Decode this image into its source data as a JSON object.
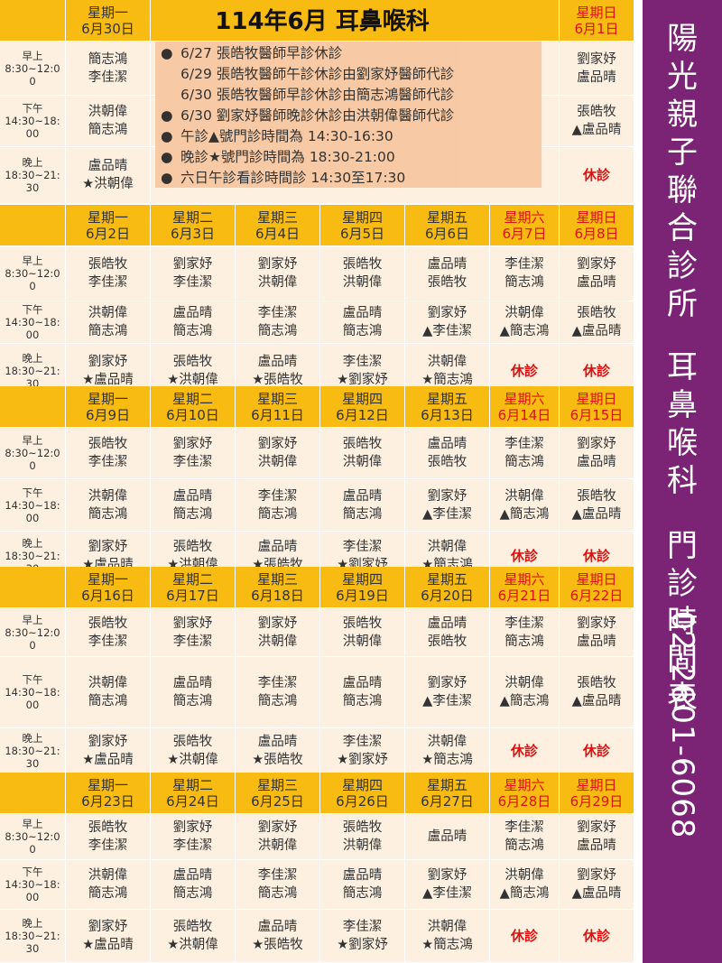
{
  "sidebar": {
    "clinic": "陽光親子聯合診所",
    "dept": "耳鼻喉科",
    "label": "門診時間表",
    "phone": "02-2601-6068"
  },
  "first_week": {
    "title": "114年6月 耳鼻喉科",
    "mon": {
      "day": "星期一",
      "date": "6月30日"
    },
    "sun": {
      "day": "星期日",
      "date": "6月1日"
    },
    "slots": [
      {
        "name": "早上",
        "time": "8:30~12:00"
      },
      {
        "name": "下午",
        "time": "14:30~18:00"
      },
      {
        "name": "晚上",
        "time": "18:30~21:30"
      }
    ],
    "mon_cells": [
      [
        "簡志鴻",
        "李佳潔"
      ],
      [
        "洪朝偉",
        "簡志鴻"
      ],
      [
        "盧品晴",
        "★洪朝偉"
      ]
    ],
    "sun_cells": [
      [
        "劉家妤",
        "盧品晴"
      ],
      [
        "張皓牧",
        "▲盧品晴"
      ],
      [
        "休診"
      ]
    ],
    "notice": [
      {
        "bullet": true,
        "text": "6/27  張皓牧醫師早診休診"
      },
      {
        "bullet": false,
        "text": "6/29  張皓牧醫師午診休診由劉家妤醫師代診"
      },
      {
        "bullet": false,
        "text": "6/30  張皓牧醫師早診休診由簡志鴻醫師代診"
      },
      {
        "bullet": true,
        "text": "6/30  劉家妤醫師晚診休診由洪朝偉醫師代診"
      },
      {
        "bullet": true,
        "text": "午診▲號門診時間為 14:30-16:30"
      },
      {
        "bullet": true,
        "text": "晚診★號門診時間為  18:30-21:00"
      },
      {
        "bullet": true,
        "text": "六日午診看診時間診 14:30至17:30"
      }
    ]
  },
  "weeks": [
    {
      "days": [
        {
          "day": "星期一",
          "date": "6月2日"
        },
        {
          "day": "星期二",
          "date": "6月3日"
        },
        {
          "day": "星期三",
          "date": "6月4日"
        },
        {
          "day": "星期四",
          "date": "6月5日"
        },
        {
          "day": "星期五",
          "date": "6月6日"
        },
        {
          "day": "星期六",
          "date": "6月7日"
        },
        {
          "day": "星期日",
          "date": "6月8日"
        }
      ],
      "rows": [
        [
          [
            "張皓牧",
            "李佳潔"
          ],
          [
            "劉家妤",
            "李佳潔"
          ],
          [
            "劉家妤",
            "洪朝偉"
          ],
          [
            "張皓牧",
            "洪朝偉"
          ],
          [
            "盧品晴",
            "張皓牧"
          ],
          [
            "李佳潔",
            "簡志鴻"
          ],
          [
            "劉家妤",
            "盧品晴"
          ]
        ],
        [
          [
            "洪朝偉",
            "簡志鴻"
          ],
          [
            "盧品晴",
            "簡志鴻"
          ],
          [
            "李佳潔",
            "簡志鴻"
          ],
          [
            "盧品晴",
            "簡志鴻"
          ],
          [
            "劉家妤",
            "▲李佳潔"
          ],
          [
            "洪朝偉",
            "▲簡志鴻"
          ],
          [
            "張皓牧",
            "▲盧品晴"
          ]
        ],
        [
          [
            "劉家妤",
            "★盧品晴"
          ],
          [
            "張皓牧",
            "★洪朝偉"
          ],
          [
            "盧品晴",
            "★張皓牧"
          ],
          [
            "李佳潔",
            "★劉家妤"
          ],
          [
            "洪朝偉",
            "★簡志鴻"
          ],
          [
            "休診"
          ],
          [
            "休診"
          ]
        ]
      ]
    },
    {
      "days": [
        {
          "day": "星期一",
          "date": "6月9日"
        },
        {
          "day": "星期二",
          "date": "6月10日"
        },
        {
          "day": "星期三",
          "date": "6月11日"
        },
        {
          "day": "星期四",
          "date": "6月12日"
        },
        {
          "day": "星期五",
          "date": "6月13日"
        },
        {
          "day": "星期六",
          "date": "6月14日"
        },
        {
          "day": "星期日",
          "date": "6月15日"
        }
      ],
      "rows": [
        [
          [
            "張皓牧",
            "李佳潔"
          ],
          [
            "劉家妤",
            "李佳潔"
          ],
          [
            "劉家妤",
            "洪朝偉"
          ],
          [
            "張皓牧",
            "洪朝偉"
          ],
          [
            "盧品晴",
            "張皓牧"
          ],
          [
            "李佳潔",
            "簡志鴻"
          ],
          [
            "劉家妤",
            "盧品晴"
          ]
        ],
        [
          [
            "洪朝偉",
            "簡志鴻"
          ],
          [
            "盧品晴",
            "簡志鴻"
          ],
          [
            "李佳潔",
            "簡志鴻"
          ],
          [
            "盧品晴",
            "簡志鴻"
          ],
          [
            "劉家妤",
            "▲李佳潔"
          ],
          [
            "洪朝偉",
            "▲簡志鴻"
          ],
          [
            "張皓牧",
            "▲盧品晴"
          ]
        ],
        [
          [
            "劉家妤",
            "★盧品晴"
          ],
          [
            "張皓牧",
            "★洪朝偉"
          ],
          [
            "盧品晴",
            "★張皓牧"
          ],
          [
            "李佳潔",
            "★劉家妤"
          ],
          [
            "洪朝偉",
            "★簡志鴻"
          ],
          [
            "休診"
          ],
          [
            "休診"
          ]
        ]
      ]
    },
    {
      "days": [
        {
          "day": "星期一",
          "date": "6月16日"
        },
        {
          "day": "星期二",
          "date": "6月17日"
        },
        {
          "day": "星期三",
          "date": "6月18日"
        },
        {
          "day": "星期四",
          "date": "6月19日"
        },
        {
          "day": "星期五",
          "date": "6月20日"
        },
        {
          "day": "星期六",
          "date": "6月21日"
        },
        {
          "day": "星期日",
          "date": "6月22日"
        }
      ],
      "rows": [
        [
          [
            "張皓牧",
            "李佳潔"
          ],
          [
            "劉家妤",
            "李佳潔"
          ],
          [
            "劉家妤",
            "洪朝偉"
          ],
          [
            "張皓牧",
            "洪朝偉"
          ],
          [
            "盧品晴",
            "張皓牧"
          ],
          [
            "李佳潔",
            "簡志鴻"
          ],
          [
            "劉家妤",
            "盧品晴"
          ]
        ],
        [
          [
            "洪朝偉",
            "簡志鴻"
          ],
          [
            "盧品晴",
            "簡志鴻"
          ],
          [
            "李佳潔",
            "簡志鴻"
          ],
          [
            "盧品晴",
            "簡志鴻"
          ],
          [
            "劉家妤",
            "▲李佳潔"
          ],
          [
            "洪朝偉",
            "▲簡志鴻"
          ],
          [
            "張皓牧",
            "▲盧品晴"
          ]
        ],
        [
          [
            "劉家妤",
            "★盧品晴"
          ],
          [
            "張皓牧",
            "★洪朝偉"
          ],
          [
            "盧品晴",
            "★張皓牧"
          ],
          [
            "李佳潔",
            "★劉家妤"
          ],
          [
            "洪朝偉",
            "★簡志鴻"
          ],
          [
            "休診"
          ],
          [
            "休診"
          ]
        ]
      ]
    },
    {
      "days": [
        {
          "day": "星期一",
          "date": "6月23日"
        },
        {
          "day": "星期二",
          "date": "6月24日"
        },
        {
          "day": "星期三",
          "date": "6月25日"
        },
        {
          "day": "星期四",
          "date": "6月26日"
        },
        {
          "day": "星期五",
          "date": "6月27日"
        },
        {
          "day": "星期六",
          "date": "6月28日"
        },
        {
          "day": "星期日",
          "date": "6月29日"
        }
      ],
      "rows": [
        [
          [
            "張皓牧",
            "李佳潔"
          ],
          [
            "劉家妤",
            "李佳潔"
          ],
          [
            "劉家妤",
            "洪朝偉"
          ],
          [
            "張皓牧",
            "洪朝偉"
          ],
          [
            "盧品晴"
          ],
          [
            "李佳潔",
            "簡志鴻"
          ],
          [
            "劉家妤",
            "盧品晴"
          ]
        ],
        [
          [
            "洪朝偉",
            "簡志鴻"
          ],
          [
            "盧品晴",
            "簡志鴻"
          ],
          [
            "李佳潔",
            "簡志鴻"
          ],
          [
            "盧品晴",
            "簡志鴻"
          ],
          [
            "劉家妤",
            "▲李佳潔"
          ],
          [
            "洪朝偉",
            "▲簡志鴻"
          ],
          [
            "劉家妤",
            "▲盧品晴"
          ]
        ],
        [
          [
            "劉家妤",
            "★盧品晴"
          ],
          [
            "張皓牧",
            "★洪朝偉"
          ],
          [
            "盧品晴",
            "★張皓牧"
          ],
          [
            "李佳潔",
            "★劉家妤"
          ],
          [
            "洪朝偉",
            "★簡志鴻"
          ],
          [
            "休診"
          ],
          [
            "休診"
          ]
        ]
      ]
    }
  ],
  "colors": {
    "header": "#f7bb12",
    "cell": "#fdf0e0",
    "weekend": "#e01010",
    "sidebar": "#7b2476",
    "notice": "#f7c7a0"
  }
}
